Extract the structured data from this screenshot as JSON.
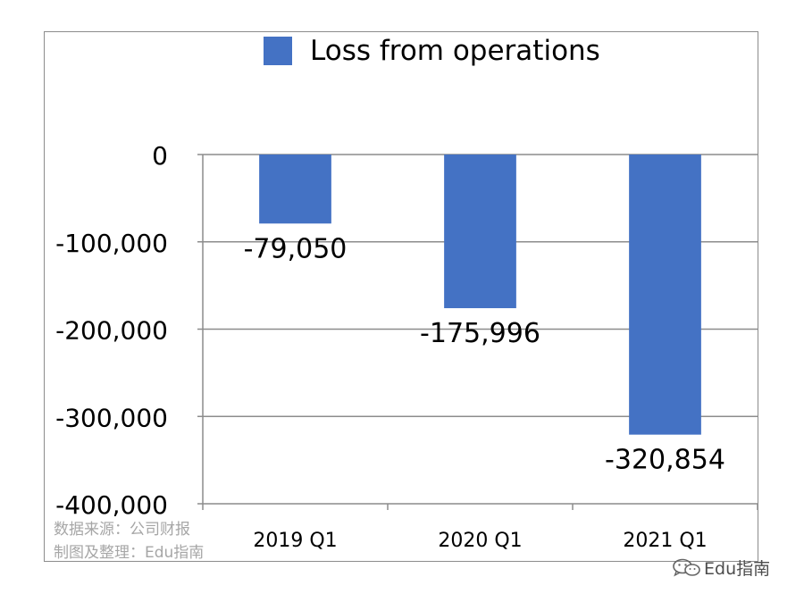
{
  "chart_data": {
    "type": "bar",
    "categories": [
      "2019 Q1",
      "2020 Q1",
      "2021 Q1"
    ],
    "series": [
      {
        "name": "Loss from operations",
        "values": [
          -79050,
          -175996,
          -320854
        ],
        "color": "#4472c4"
      }
    ],
    "data_labels": [
      "-79,050",
      "-175,996",
      "-320,854"
    ],
    "y_ticks": [
      0,
      -100000,
      -200000,
      -300000,
      -400000
    ],
    "y_tick_labels": [
      "0",
      "-100,000",
      "-200,000",
      "-300,000",
      "-400,000"
    ],
    "ylim": [
      -400000,
      0
    ],
    "grid": true,
    "legend_position": "top"
  },
  "source_note": {
    "line1": "数据来源：公司财报",
    "line2": "制图及整理：Edu指南"
  },
  "watermark": {
    "text": "Edu指南",
    "icon": "wechat-icon"
  }
}
